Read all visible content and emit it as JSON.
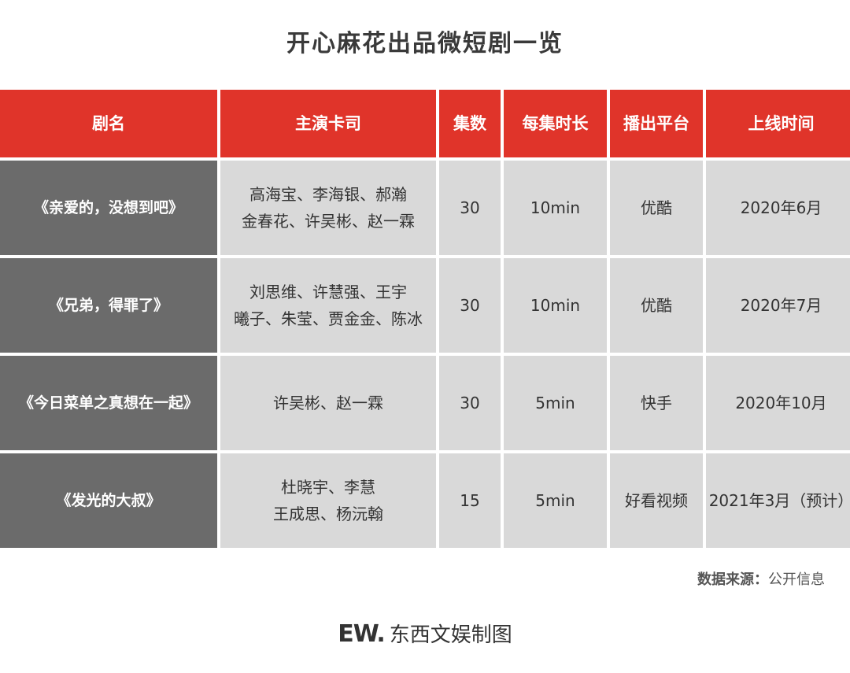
{
  "title": "开心麻花出品微短剧一览",
  "table": {
    "headers": [
      "剧名",
      "主演卡司",
      "集数",
      "每集时长",
      "播出平台",
      "上线时间"
    ],
    "rows": [
      {
        "name": "《亲爱的，没想到吧》",
        "cast_line1": "高海宝、李海银、郝瀚",
        "cast_line2": "金春花、许吴彬、赵一霖",
        "episodes": "30",
        "duration": "10min",
        "platform": "优酷",
        "date": "2020年6月"
      },
      {
        "name": "《兄弟，得罪了》",
        "cast_line1": "刘思维、许慧强、王宇",
        "cast_line2": "曦子、朱莹、贾金金、陈冰",
        "episodes": "30",
        "duration": "10min",
        "platform": "优酷",
        "date": "2020年7月"
      },
      {
        "name": "《今日菜单之真想在一起》",
        "cast_line1": "许吴彬、赵一霖",
        "cast_line2": "",
        "episodes": "30",
        "duration": "5min",
        "platform": "快手",
        "date": "2020年10月"
      },
      {
        "name": "《发光的大叔》",
        "cast_line1": "杜晓宇、李慧",
        "cast_line2": "王成思、杨沅翰",
        "episodes": "15",
        "duration": "5min",
        "platform": "好看视频",
        "date": "2021年3月（预计）"
      }
    ]
  },
  "source": {
    "label": "数据来源：",
    "value": "公开信息"
  },
  "footer": {
    "logo": "EW.",
    "text": "东西文娱制图"
  },
  "colors": {
    "header": "#e0342a",
    "name_column": "#6b6b6b",
    "cell": "#d9d9d9"
  }
}
